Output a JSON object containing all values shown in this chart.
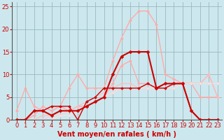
{
  "background_color": "#cce8ee",
  "grid_color": "#9ab8be",
  "xlabel": "Vent moyen/en rafales ( km/h )",
  "xlabel_color": "#cc0000",
  "xlabel_fontsize": 7,
  "tick_color": "#cc0000",
  "tick_fontsize": 6,
  "xlim": [
    -0.5,
    23.5
  ],
  "ylim": [
    0,
    26
  ],
  "yticks": [
    0,
    5,
    10,
    15,
    20,
    25
  ],
  "xticks": [
    0,
    1,
    2,
    3,
    4,
    5,
    6,
    7,
    8,
    9,
    10,
    11,
    12,
    13,
    14,
    15,
    16,
    17,
    18,
    19,
    20,
    21,
    22,
    23
  ],
  "series": [
    {
      "x": [
        0,
        1,
        2,
        3,
        4,
        5,
        6,
        7,
        8,
        9,
        10,
        11,
        12,
        13,
        14,
        15,
        16,
        17,
        18,
        19,
        20,
        21,
        22,
        23
      ],
      "y": [
        2,
        7,
        3,
        2,
        3,
        3,
        7,
        10,
        7,
        7,
        7,
        13,
        18,
        22,
        24,
        24,
        21,
        10,
        9,
        8,
        8,
        5,
        5,
        5
      ],
      "color": "#ffaaaa",
      "lw": 1.0,
      "marker": "D",
      "ms": 2.0
    },
    {
      "x": [
        0,
        1,
        2,
        3,
        4,
        5,
        6,
        7,
        8,
        9,
        10,
        11,
        12,
        13,
        14,
        15,
        16,
        17,
        18,
        19,
        20,
        21,
        22,
        23
      ],
      "y": [
        0,
        0,
        1,
        3,
        2,
        3,
        2,
        3,
        3,
        4,
        5,
        8,
        12,
        13,
        8,
        8,
        7,
        7,
        8,
        8,
        8,
        8,
        10,
        5
      ],
      "color": "#ffaaaa",
      "lw": 1.0,
      "marker": "D",
      "ms": 2.0
    },
    {
      "x": [
        0,
        1,
        2,
        3,
        4,
        5,
        6,
        7,
        8,
        9,
        10,
        11,
        12,
        13,
        14,
        15,
        16,
        17,
        18,
        19,
        20,
        21,
        22,
        23
      ],
      "y": [
        0,
        0,
        0,
        1,
        1,
        2,
        2,
        3,
        4,
        5,
        6,
        7,
        8,
        8,
        7,
        8,
        7,
        7,
        8,
        8,
        8,
        8,
        10,
        5
      ],
      "color": "#ffbbbb",
      "lw": 0.8,
      "marker": "D",
      "ms": 1.8
    },
    {
      "x": [
        0,
        1,
        2,
        3,
        4,
        5,
        6,
        7,
        8,
        9,
        10,
        11,
        12,
        13,
        14,
        15,
        16,
        17,
        18,
        19,
        20,
        21,
        22,
        23
      ],
      "y": [
        0,
        0,
        0,
        0,
        1,
        1,
        2,
        2,
        3,
        4,
        5,
        6,
        7,
        7,
        7,
        7,
        7,
        7,
        8,
        8,
        8,
        8,
        8,
        8
      ],
      "color": "#ffcccc",
      "lw": 0.8,
      "marker": "D",
      "ms": 1.8
    },
    {
      "x": [
        0,
        1,
        2,
        3,
        4,
        5,
        6,
        7,
        8,
        9,
        10,
        11,
        12,
        13,
        14,
        15,
        16,
        17,
        18,
        19,
        20,
        21,
        22,
        23
      ],
      "y": [
        0,
        0,
        0,
        0,
        0,
        1,
        1,
        2,
        3,
        4,
        5,
        6,
        7,
        7,
        7,
        7,
        7,
        7,
        7,
        8,
        8,
        8,
        8,
        8
      ],
      "color": "#ffdddd",
      "lw": 0.8,
      "marker": "D",
      "ms": 1.8
    },
    {
      "x": [
        0,
        1,
        2,
        3,
        4,
        5,
        6,
        7,
        8,
        9,
        10,
        11,
        12,
        13,
        14,
        15,
        16,
        17,
        18,
        19,
        20,
        21,
        22,
        23
      ],
      "y": [
        0,
        0,
        2,
        2,
        1,
        2,
        2,
        2,
        3,
        4,
        5,
        10,
        14,
        15,
        15,
        15,
        7,
        8,
        8,
        8,
        2,
        0,
        0,
        0
      ],
      "color": "#cc0000",
      "lw": 1.5,
      "marker": "D",
      "ms": 2.5
    },
    {
      "x": [
        0,
        1,
        2,
        3,
        4,
        5,
        6,
        7,
        8,
        9,
        10,
        11,
        12,
        13,
        14,
        15,
        16,
        17,
        18,
        19,
        20,
        21,
        22,
        23
      ],
      "y": [
        0,
        0,
        2,
        2,
        3,
        3,
        3,
        0,
        4,
        5,
        7,
        7,
        7,
        7,
        7,
        8,
        7,
        7,
        8,
        8,
        2,
        0,
        0,
        0
      ],
      "color": "#cc0000",
      "lw": 1.0,
      "marker": "D",
      "ms": 2.0
    }
  ]
}
